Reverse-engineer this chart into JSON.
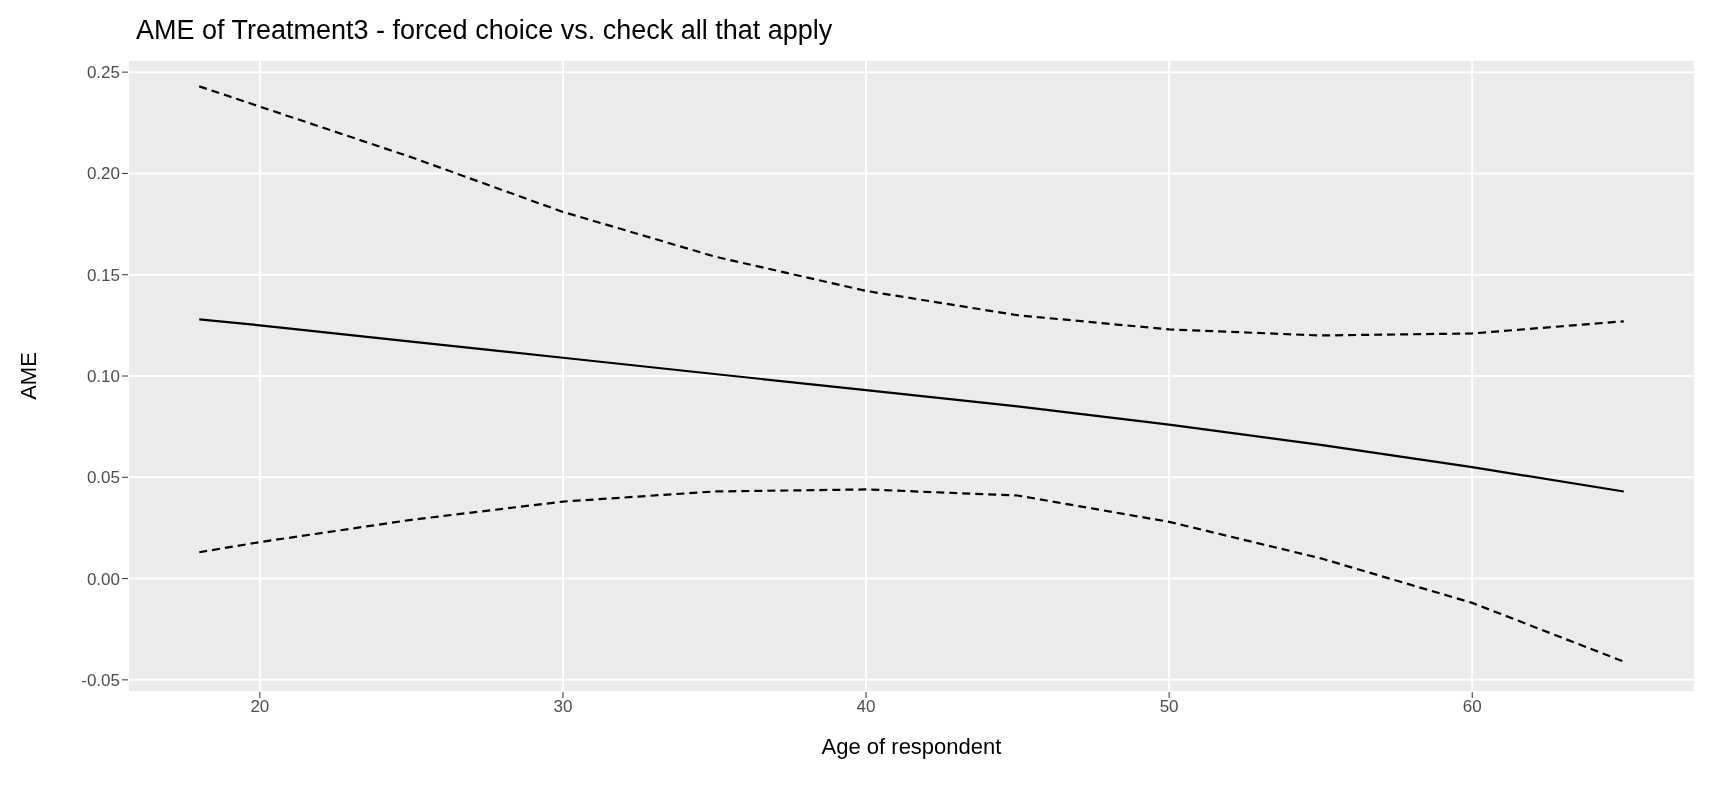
{
  "chart_data": {
    "type": "line",
    "title": "AME of Treatment3 - forced choice vs. check all that apply",
    "xlabel": "Age of respondent",
    "ylabel": "AME",
    "x": [
      18,
      20,
      25,
      30,
      35,
      40,
      45,
      50,
      55,
      60,
      65
    ],
    "series": [
      {
        "color": "#000000",
        "line_style": "solid",
        "values": [
          0.128,
          0.125,
          0.117,
          0.109,
          0.101,
          0.093,
          0.085,
          0.076,
          0.066,
          0.055,
          0.043
        ]
      },
      {
        "color": "#000000",
        "line_style": "dashed",
        "values": [
          0.243,
          0.233,
          0.208,
          0.181,
          0.159,
          0.142,
          0.13,
          0.123,
          0.12,
          0.121,
          0.127
        ]
      },
      {
        "color": "#000000",
        "line_style": "dashed",
        "values": [
          0.013,
          0.018,
          0.029,
          0.038,
          0.043,
          0.044,
          0.041,
          0.028,
          0.01,
          -0.012,
          -0.041
        ]
      }
    ],
    "xlim": [
      15.65,
      67.35
    ],
    "xticks": [
      20,
      30,
      40,
      50,
      60
    ],
    "ylim": [
      -0.056,
      0.256
    ],
    "yticks": [
      {
        "value": -0.05,
        "label": "-0.05"
      },
      {
        "value": 0,
        "label": "0.00"
      },
      {
        "value": 0.05,
        "label": "0.05"
      },
      {
        "value": 0.1,
        "label": "0.10"
      },
      {
        "value": 0.15,
        "label": "0.15"
      },
      {
        "value": 0.2,
        "label": "0.20"
      },
      {
        "value": 0.25,
        "label": "0.25"
      }
    ],
    "grid": true,
    "marker": "none"
  }
}
